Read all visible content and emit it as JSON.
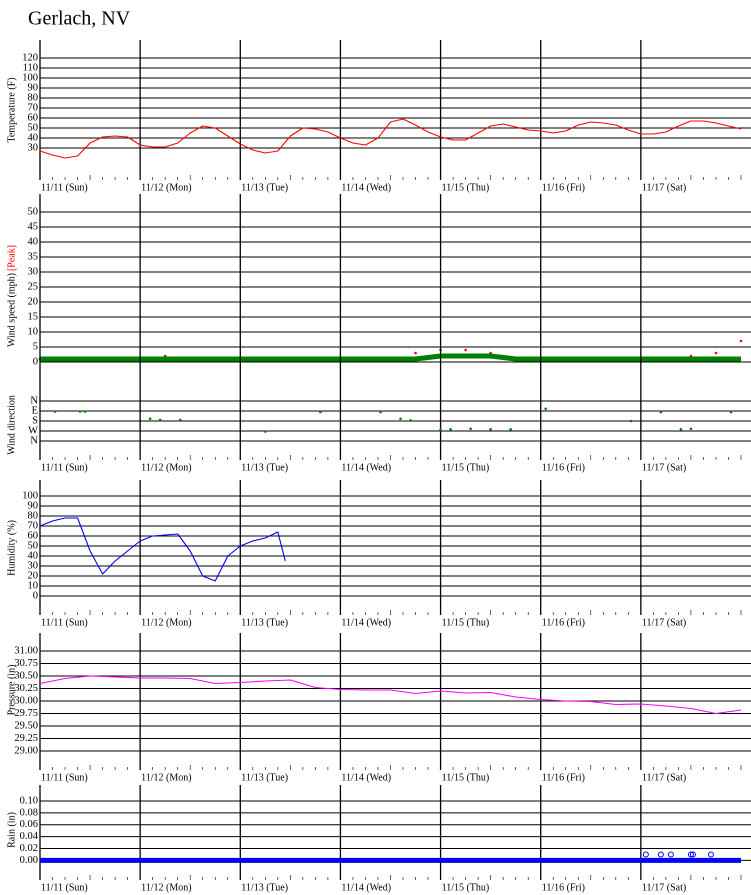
{
  "title": "Gerlach, NV",
  "chart_data": [
    {
      "type": "line",
      "ylabel": "Temperature (F)",
      "xlim": [
        0,
        7.1
      ],
      "ylim": [
        -2,
        138
      ],
      "yticks": [
        30,
        40,
        50,
        60,
        70,
        80,
        90,
        100,
        110,
        120
      ],
      "xticks": [
        {
          "value": 0,
          "label": "11/11 (Sun)"
        },
        {
          "value": 1,
          "label": "11/12 (Mon)"
        },
        {
          "value": 2,
          "label": "11/13 (Tue)"
        },
        {
          "value": 3,
          "label": "11/14 (Wed)"
        },
        {
          "value": 4,
          "label": "11/15 (Thu)"
        },
        {
          "value": 5,
          "label": "11/16 (Fri)"
        },
        {
          "value": 6,
          "label": "11/17 (Sat)"
        }
      ],
      "series": [
        {
          "color": "#ff0000",
          "mode": "line",
          "x": [
            0,
            0.125,
            0.25,
            0.375,
            0.5,
            0.625,
            0.75,
            0.875,
            1,
            1.125,
            1.25,
            1.375,
            1.5,
            1.625,
            1.75,
            1.875,
            2,
            2.125,
            2.25,
            2.375,
            2.5,
            2.625,
            2.75,
            2.875,
            3,
            3.125,
            3.25,
            3.375,
            3.5,
            3.625,
            3.75,
            3.875,
            4,
            4.125,
            4.25,
            4.375,
            4.5,
            4.625,
            4.75,
            4.875,
            5,
            5.125,
            5.25,
            5.375,
            5.5,
            5.625,
            5.75,
            5.875,
            6,
            6.125,
            6.25,
            6.375,
            6.5,
            6.625,
            6.75,
            6.875,
            7
          ],
          "values": [
            27,
            23,
            20,
            22,
            35,
            41,
            42,
            41,
            33,
            31,
            31,
            35,
            45,
            52,
            50,
            42,
            34,
            28,
            25,
            27,
            42,
            50,
            49,
            46,
            40,
            35,
            33,
            40,
            56,
            59,
            53,
            46,
            41,
            38,
            38,
            45,
            52,
            54,
            51,
            48,
            47,
            45,
            47,
            53,
            56,
            55,
            53,
            48,
            44,
            44,
            46,
            52,
            57,
            57,
            55,
            52,
            49
          ]
        }
      ]
    },
    {
      "type": "line",
      "ylabel": "Wind speed (mph)",
      "xlim": [
        0,
        7.1
      ],
      "ylim": [
        -6,
        56
      ],
      "yticks": [
        0,
        5,
        10,
        15,
        20,
        25,
        30,
        35,
        40,
        45,
        50
      ],
      "series": [
        {
          "name": "[Peak]",
          "color": "#ff0000",
          "mode": "dots",
          "x": [
            0,
            0.25,
            0.5,
            0.75,
            1,
            1.25,
            1.5,
            1.75,
            2,
            2.25,
            2.5,
            2.75,
            3,
            3.25,
            3.5,
            3.75,
            4,
            4.25,
            4.5,
            4.75,
            5,
            5.25,
            5.5,
            5.75,
            6,
            6.25,
            6.5,
            6.75,
            7
          ],
          "values": [
            1,
            1,
            1,
            1,
            1,
            2,
            1,
            1,
            1,
            1,
            1,
            1,
            1,
            1,
            1,
            3,
            4,
            4,
            3,
            1,
            1,
            1,
            1,
            1,
            1,
            1,
            2,
            3,
            7
          ]
        },
        {
          "color": "#008000",
          "mode": "band",
          "x": [
            0,
            0.25,
            0.5,
            0.75,
            1,
            1.25,
            1.5,
            1.75,
            2,
            2.25,
            2.5,
            2.75,
            3,
            3.25,
            3.5,
            3.75,
            4,
            4.25,
            4.5,
            4.75,
            5,
            5.25,
            5.5,
            5.75,
            6,
            6.25,
            6.5,
            6.75,
            7
          ],
          "values": [
            1,
            1,
            1,
            1,
            1,
            1,
            1,
            1,
            1,
            1,
            1,
            1,
            1,
            1,
            1,
            1,
            2,
            2,
            2,
            1,
            1,
            1,
            1,
            1,
            1,
            1,
            1,
            1,
            1
          ]
        }
      ]
    },
    {
      "type": "scatter",
      "ylabel": "Wind direction",
      "xlim": [
        0,
        7.1
      ],
      "ylim": [
        -189,
        531
      ],
      "y_reversed": true,
      "yticks": [
        {
          "value": 0,
          "label": "N"
        },
        {
          "value": 90,
          "label": "E"
        },
        {
          "value": 180,
          "label": "S"
        },
        {
          "value": 270,
          "label": "W"
        },
        {
          "value": 360,
          "label": "N"
        }
      ],
      "xticks": [
        {
          "value": 0,
          "label": "11/11 (Sun)"
        },
        {
          "value": 1,
          "label": "11/12 (Mon)"
        },
        {
          "value": 2,
          "label": "11/13 (Tue)"
        },
        {
          "value": 3,
          "label": "11/14 (Wed)"
        },
        {
          "value": 4,
          "label": "11/15 (Thu)"
        },
        {
          "value": 5,
          "label": "11/16 (Fri)"
        },
        {
          "value": 6,
          "label": "11/17 (Sat)"
        }
      ],
      "series": [
        {
          "color": "#008000",
          "mode": "dots",
          "x": [
            0.15,
            0.4,
            0.45,
            1.1,
            1.2,
            1.4,
            2.25,
            2.8,
            3.4,
            3.6,
            3.7,
            4.0,
            4.1,
            4.3,
            4.5,
            4.7,
            5.05,
            5.9,
            6.2,
            6.4,
            6.5,
            6.9
          ],
          "values": [
            95,
            95,
            95,
            160,
            170,
            170,
            275,
            100,
            100,
            160,
            175,
            260,
            255,
            250,
            255,
            255,
            70,
            180,
            100,
            255,
            250,
            100
          ]
        }
      ]
    },
    {
      "type": "line",
      "ylabel": "Humidity (%)",
      "xlim": [
        0,
        7.1
      ],
      "ylim": [
        -19,
        116
      ],
      "yticks": [
        0,
        10,
        20,
        30,
        40,
        50,
        60,
        70,
        80,
        90,
        100
      ],
      "xticks": [
        {
          "value": 0,
          "label": "11/11 (Sun)"
        },
        {
          "value": 1,
          "label": "11/12 (Mon)"
        },
        {
          "value": 2,
          "label": "11/13 (Tue)"
        },
        {
          "value": 3,
          "label": "11/14 (Wed)"
        },
        {
          "value": 4,
          "label": "11/15 (Thu)"
        },
        {
          "value": 5,
          "label": "11/16 (Fri)"
        },
        {
          "value": 6,
          "label": "11/17 (Sat)"
        }
      ],
      "series": [
        {
          "color": "#0000ff",
          "mode": "line",
          "x": [
            0,
            0.125,
            0.25,
            0.375,
            0.5,
            0.625,
            0.75,
            0.875,
            1,
            1.125,
            1.25,
            1.375,
            1.5,
            1.625,
            1.75,
            1.875,
            2,
            2.125,
            2.25,
            2.375,
            2.45
          ],
          "values": [
            70,
            75,
            78,
            78,
            45,
            22,
            35,
            45,
            55,
            60,
            61,
            62,
            45,
            20,
            15,
            40,
            50,
            55,
            58,
            64,
            35
          ]
        }
      ]
    },
    {
      "type": "line",
      "ylabel": "Pressure (in)",
      "xlim": [
        0,
        7.1
      ],
      "ylim": [
        28.62,
        31.36
      ],
      "yticks": [
        {
          "value": 29,
          "label": "29.00"
        },
        {
          "value": 29.25,
          "label": "29.25"
        },
        {
          "value": 29.5,
          "label": "29.50"
        },
        {
          "value": 29.75,
          "label": "29.75"
        },
        {
          "value": 30,
          "label": "30.00"
        },
        {
          "value": 30.25,
          "label": "30.25"
        },
        {
          "value": 30.5,
          "label": "30.50"
        },
        {
          "value": 30.75,
          "label": "30.75"
        },
        {
          "value": 31,
          "label": "31.00"
        }
      ],
      "xticks": [
        {
          "value": 0,
          "label": "11/11 (Sun)"
        },
        {
          "value": 1,
          "label": "11/12 (Mon)"
        },
        {
          "value": 2,
          "label": "11/13 (Tue)"
        },
        {
          "value": 3,
          "label": "11/14 (Wed)"
        },
        {
          "value": 4,
          "label": "11/15 (Thu)"
        },
        {
          "value": 5,
          "label": "11/16 (Fri)"
        },
        {
          "value": 6,
          "label": "11/17 (Sat)"
        }
      ],
      "series": [
        {
          "color": "#ff00ff",
          "mode": "line",
          "x": [
            0,
            0.25,
            0.5,
            0.75,
            1,
            1.25,
            1.5,
            1.75,
            2,
            2.25,
            2.5,
            2.75,
            3,
            3.25,
            3.5,
            3.75,
            4,
            4.25,
            4.5,
            4.75,
            5,
            5.25,
            5.5,
            5.75,
            6,
            6.25,
            6.5,
            6.75,
            7
          ],
          "values": [
            30.35,
            30.45,
            30.5,
            30.48,
            30.46,
            30.46,
            30.45,
            30.35,
            30.37,
            30.4,
            30.42,
            30.27,
            30.23,
            30.22,
            30.22,
            30.15,
            30.2,
            30.16,
            30.17,
            30.08,
            30.03,
            30,
            29.99,
            29.93,
            29.94,
            29.9,
            29.85,
            29.75,
            29.82
          ]
        }
      ]
    },
    {
      "type": "line",
      "ylabel": "Rain (in)",
      "xlim": [
        0,
        7.1
      ],
      "ylim": [
        -0.033,
        0.127
      ],
      "yticks": [
        {
          "value": 0,
          "label": "0.00"
        },
        {
          "value": 0.02,
          "label": "0.02"
        },
        {
          "value": 0.04,
          "label": "0.04"
        },
        {
          "value": 0.06,
          "label": "0.06"
        },
        {
          "value": 0.08,
          "label": "0.08"
        },
        {
          "value": 0.1,
          "label": "0.10"
        }
      ],
      "xticks": [
        {
          "value": 0,
          "label": "11/11 (Sun)"
        },
        {
          "value": 1,
          "label": "11/12 (Mon)"
        },
        {
          "value": 2,
          "label": "11/13 (Tue)"
        },
        {
          "value": 3,
          "label": "11/14 (Wed)"
        },
        {
          "value": 4,
          "label": "11/15 (Thu)"
        },
        {
          "value": 5,
          "label": "11/16 (Fri)"
        },
        {
          "value": 6,
          "label": "11/17 (Sat)"
        }
      ],
      "series": [
        {
          "color": "#0000ff",
          "mode": "band",
          "x": [
            0,
            0.25,
            0.5,
            0.75,
            1,
            1.25,
            1.5,
            1.75,
            2,
            2.25,
            2.5,
            2.75,
            3,
            3.25,
            3.5,
            3.75,
            4,
            4.25,
            4.5,
            4.75,
            5,
            5.25,
            5.5,
            5.75,
            6,
            6.25,
            6.5,
            6.75,
            7
          ],
          "values": [
            0,
            0,
            0,
            0,
            0,
            0,
            0,
            0,
            0,
            0,
            0,
            0,
            0,
            0,
            0,
            0,
            0,
            0,
            0,
            0,
            0,
            0,
            0,
            0,
            0,
            0,
            0,
            0,
            0
          ]
        },
        {
          "color": "#0000ff",
          "mode": "rings",
          "x": [
            6.05,
            6.2,
            6.3,
            6.5,
            6.52,
            6.7
          ],
          "values": [
            0.01,
            0.01,
            0.01,
            0.01,
            0.01,
            0.01
          ]
        }
      ]
    }
  ]
}
